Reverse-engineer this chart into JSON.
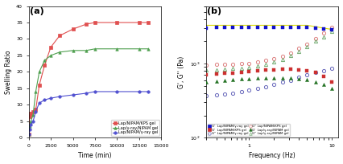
{
  "panel_a": {
    "title": "(a)",
    "xlabel": "Time (min)",
    "ylabel": "Swelling Ratio",
    "xlim": [
      0,
      15000
    ],
    "ylim": [
      0,
      40
    ],
    "series": [
      {
        "label": "Lap/NIPAM/KPS gel",
        "color": "#e05050",
        "marker": "s",
        "x": [
          0,
          100,
          250,
          500,
          800,
          1200,
          1800,
          2500,
          3500,
          5000,
          6500,
          7500,
          10000,
          12500,
          13500
        ],
        "y": [
          1,
          6.5,
          7.5,
          8,
          8.5,
          16,
          22,
          27.5,
          31,
          33,
          34.5,
          35,
          35,
          35,
          35
        ]
      },
      {
        "label": "Lap/γ-ray/NIPAM gel",
        "color": "#50a050",
        "marker": "^",
        "x": [
          0,
          100,
          250,
          500,
          800,
          1200,
          1800,
          2500,
          3500,
          5000,
          6500,
          7500,
          10000,
          12500,
          13500
        ],
        "y": [
          1,
          3.5,
          5,
          7,
          14,
          20,
          23.5,
          25,
          26,
          26.5,
          26.5,
          27,
          27,
          27,
          27
        ]
      },
      {
        "label": "Lap/NIPAM/γ-ray gel",
        "color": "#5050d0",
        "marker": "o",
        "x": [
          0,
          100,
          250,
          500,
          800,
          1200,
          1800,
          2500,
          3500,
          5000,
          6500,
          7500,
          10000,
          12500,
          13500
        ],
        "y": [
          1,
          2.5,
          4,
          5,
          8,
          10.5,
          11.5,
          12,
          12.5,
          13,
          13.5,
          14,
          14,
          14,
          14
        ]
      }
    ],
    "yticks": [
      0,
      5,
      10,
      15,
      20,
      25,
      30,
      35,
      40
    ],
    "xticks": [
      0,
      2500,
      5000,
      7500,
      10000,
      12500,
      15000
    ]
  },
  "panel_b": {
    "title": "(b)",
    "xlabel": "Frequency (Hz)",
    "ylabel": "G', G'' (Pa)",
    "xlim": [
      0.3,
      12
    ],
    "ylim": [
      100,
      6000
    ],
    "bg_line": {
      "color": "#dddd00",
      "x": [
        0.3,
        0.5,
        0.8,
        1.0,
        1.5,
        2.0,
        3.0,
        5.0,
        7.0,
        10.0
      ],
      "y": [
        3300,
        3300,
        3300,
        3300,
        3300,
        3300,
        3300,
        3300,
        3100,
        2900
      ]
    },
    "series_Gp_blue": {
      "label": "G'  Lap/NIPAM/γ-ray gel",
      "color": "#1010cc",
      "marker": "s",
      "x": [
        0.3,
        0.4,
        0.5,
        0.63,
        0.8,
        1.0,
        1.26,
        1.58,
        2.0,
        2.51,
        3.16,
        3.98,
        5.01,
        6.31,
        7.94,
        10.0
      ],
      "y": [
        3050,
        3060,
        3070,
        3070,
        3080,
        3090,
        3090,
        3090,
        3090,
        3090,
        3080,
        3070,
        3060,
        3020,
        2950,
        2850
      ]
    },
    "series_Gp_red": {
      "label": "G'  Lap/NIPAM/KPS gel",
      "color": "#cc3030",
      "marker": "s",
      "x": [
        0.3,
        0.4,
        0.5,
        0.63,
        0.8,
        1.0,
        1.26,
        1.58,
        2.0,
        2.51,
        3.16,
        3.98,
        5.01,
        6.31,
        7.94,
        10.0
      ],
      "y": [
        700,
        720,
        740,
        750,
        770,
        790,
        810,
        820,
        830,
        840,
        840,
        820,
        800,
        760,
        680,
        560
      ]
    },
    "series_Gp_green": {
      "label": "G'  Lap/γ-ray/NIPAM gel",
      "color": "#207020",
      "marker": "^",
      "x": [
        0.3,
        0.4,
        0.5,
        0.63,
        0.8,
        1.0,
        1.26,
        1.58,
        2.0,
        2.51,
        3.16,
        3.98,
        5.01,
        6.31,
        7.94,
        10.0
      ],
      "y": [
        560,
        580,
        595,
        605,
        620,
        630,
        640,
        645,
        648,
        648,
        640,
        628,
        610,
        570,
        520,
        460
      ]
    },
    "series_Gpp_blue": {
      "label": "G'' Lap/NIPAM/γ-ray gel",
      "color": "#6666bb",
      "marker": "o",
      "x": [
        0.3,
        0.4,
        0.5,
        0.63,
        0.8,
        1.0,
        1.26,
        1.58,
        2.0,
        2.51,
        3.16,
        3.98,
        5.01,
        6.31,
        7.94,
        10.0
      ],
      "y": [
        370,
        380,
        390,
        400,
        420,
        440,
        460,
        490,
        520,
        560,
        600,
        650,
        700,
        760,
        810,
        860
      ]
    },
    "series_Gpp_red": {
      "label": "G'' Lap/NIPAM/KPS gel",
      "color": "#dd8080",
      "marker": "o",
      "x": [
        0.3,
        0.4,
        0.5,
        0.63,
        0.8,
        1.0,
        1.26,
        1.58,
        2.0,
        2.51,
        3.16,
        3.98,
        5.01,
        6.31,
        7.94,
        10.0
      ],
      "y": [
        960,
        970,
        980,
        990,
        1000,
        1010,
        1050,
        1100,
        1160,
        1250,
        1400,
        1600,
        1850,
        2200,
        2600,
        3100
      ]
    },
    "series_Gpp_green": {
      "label": "G'' Lap/γ-ray/NIPAM gel",
      "color": "#70aa70",
      "marker": "^",
      "x": [
        0.3,
        0.4,
        0.5,
        0.63,
        0.8,
        1.0,
        1.26,
        1.58,
        2.0,
        2.51,
        3.16,
        3.98,
        5.01,
        6.31,
        7.94,
        10.0
      ],
      "y": [
        820,
        830,
        840,
        855,
        870,
        890,
        930,
        980,
        1060,
        1150,
        1300,
        1480,
        1720,
        2000,
        2300,
        2700
      ]
    }
  }
}
